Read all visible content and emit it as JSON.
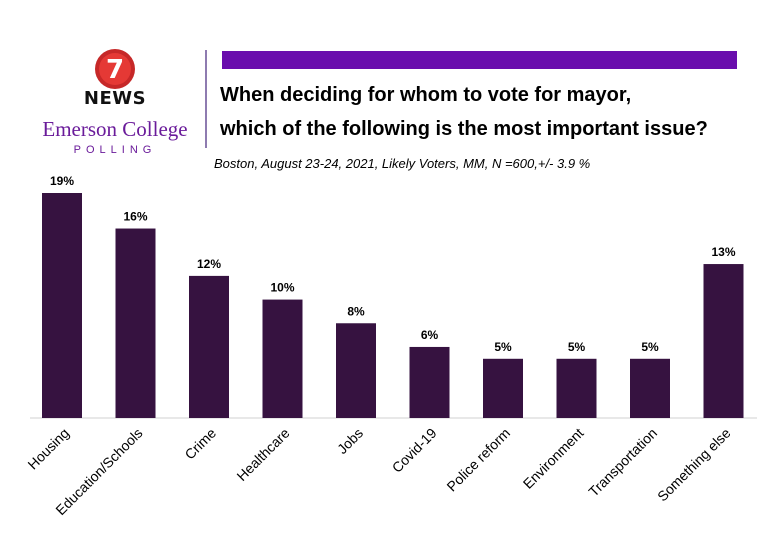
{
  "logo": {
    "news_number": "7",
    "news_label": "NEWS",
    "college_name": "Emerson College",
    "polling_label": "POLLING"
  },
  "colors": {
    "bar": "#361240",
    "accent": "#6a0dad",
    "logo_red": "#d32f2f"
  },
  "chart_data": {
    "type": "bar",
    "title": "When deciding for whom to vote for mayor,\nwhich of the following is the most important issue?",
    "title_lines": [
      "When deciding for whom to vote for mayor,",
      "which of the following is the most important issue?"
    ],
    "subtitle": "Boston, August 23-24, 2021, Likely Voters, MM, N =600,+/-  3.9 %",
    "categories": [
      "Housing",
      "Education/Schools",
      "Crime",
      "Healthcare",
      "Jobs",
      "Covid-19",
      "Police reform",
      "Environment",
      "Transportation",
      "Something else"
    ],
    "values": [
      19,
      16,
      12,
      10,
      8,
      6,
      5,
      5,
      5,
      13
    ],
    "data_labels": [
      "19%",
      "16%",
      "12%",
      "10%",
      "8%",
      "6%",
      "5%",
      "5%",
      "5%",
      "13%"
    ],
    "unit": "%",
    "xlabel": "",
    "ylabel": "",
    "ylim": [
      0,
      19
    ],
    "grid": false,
    "legend": "none"
  }
}
